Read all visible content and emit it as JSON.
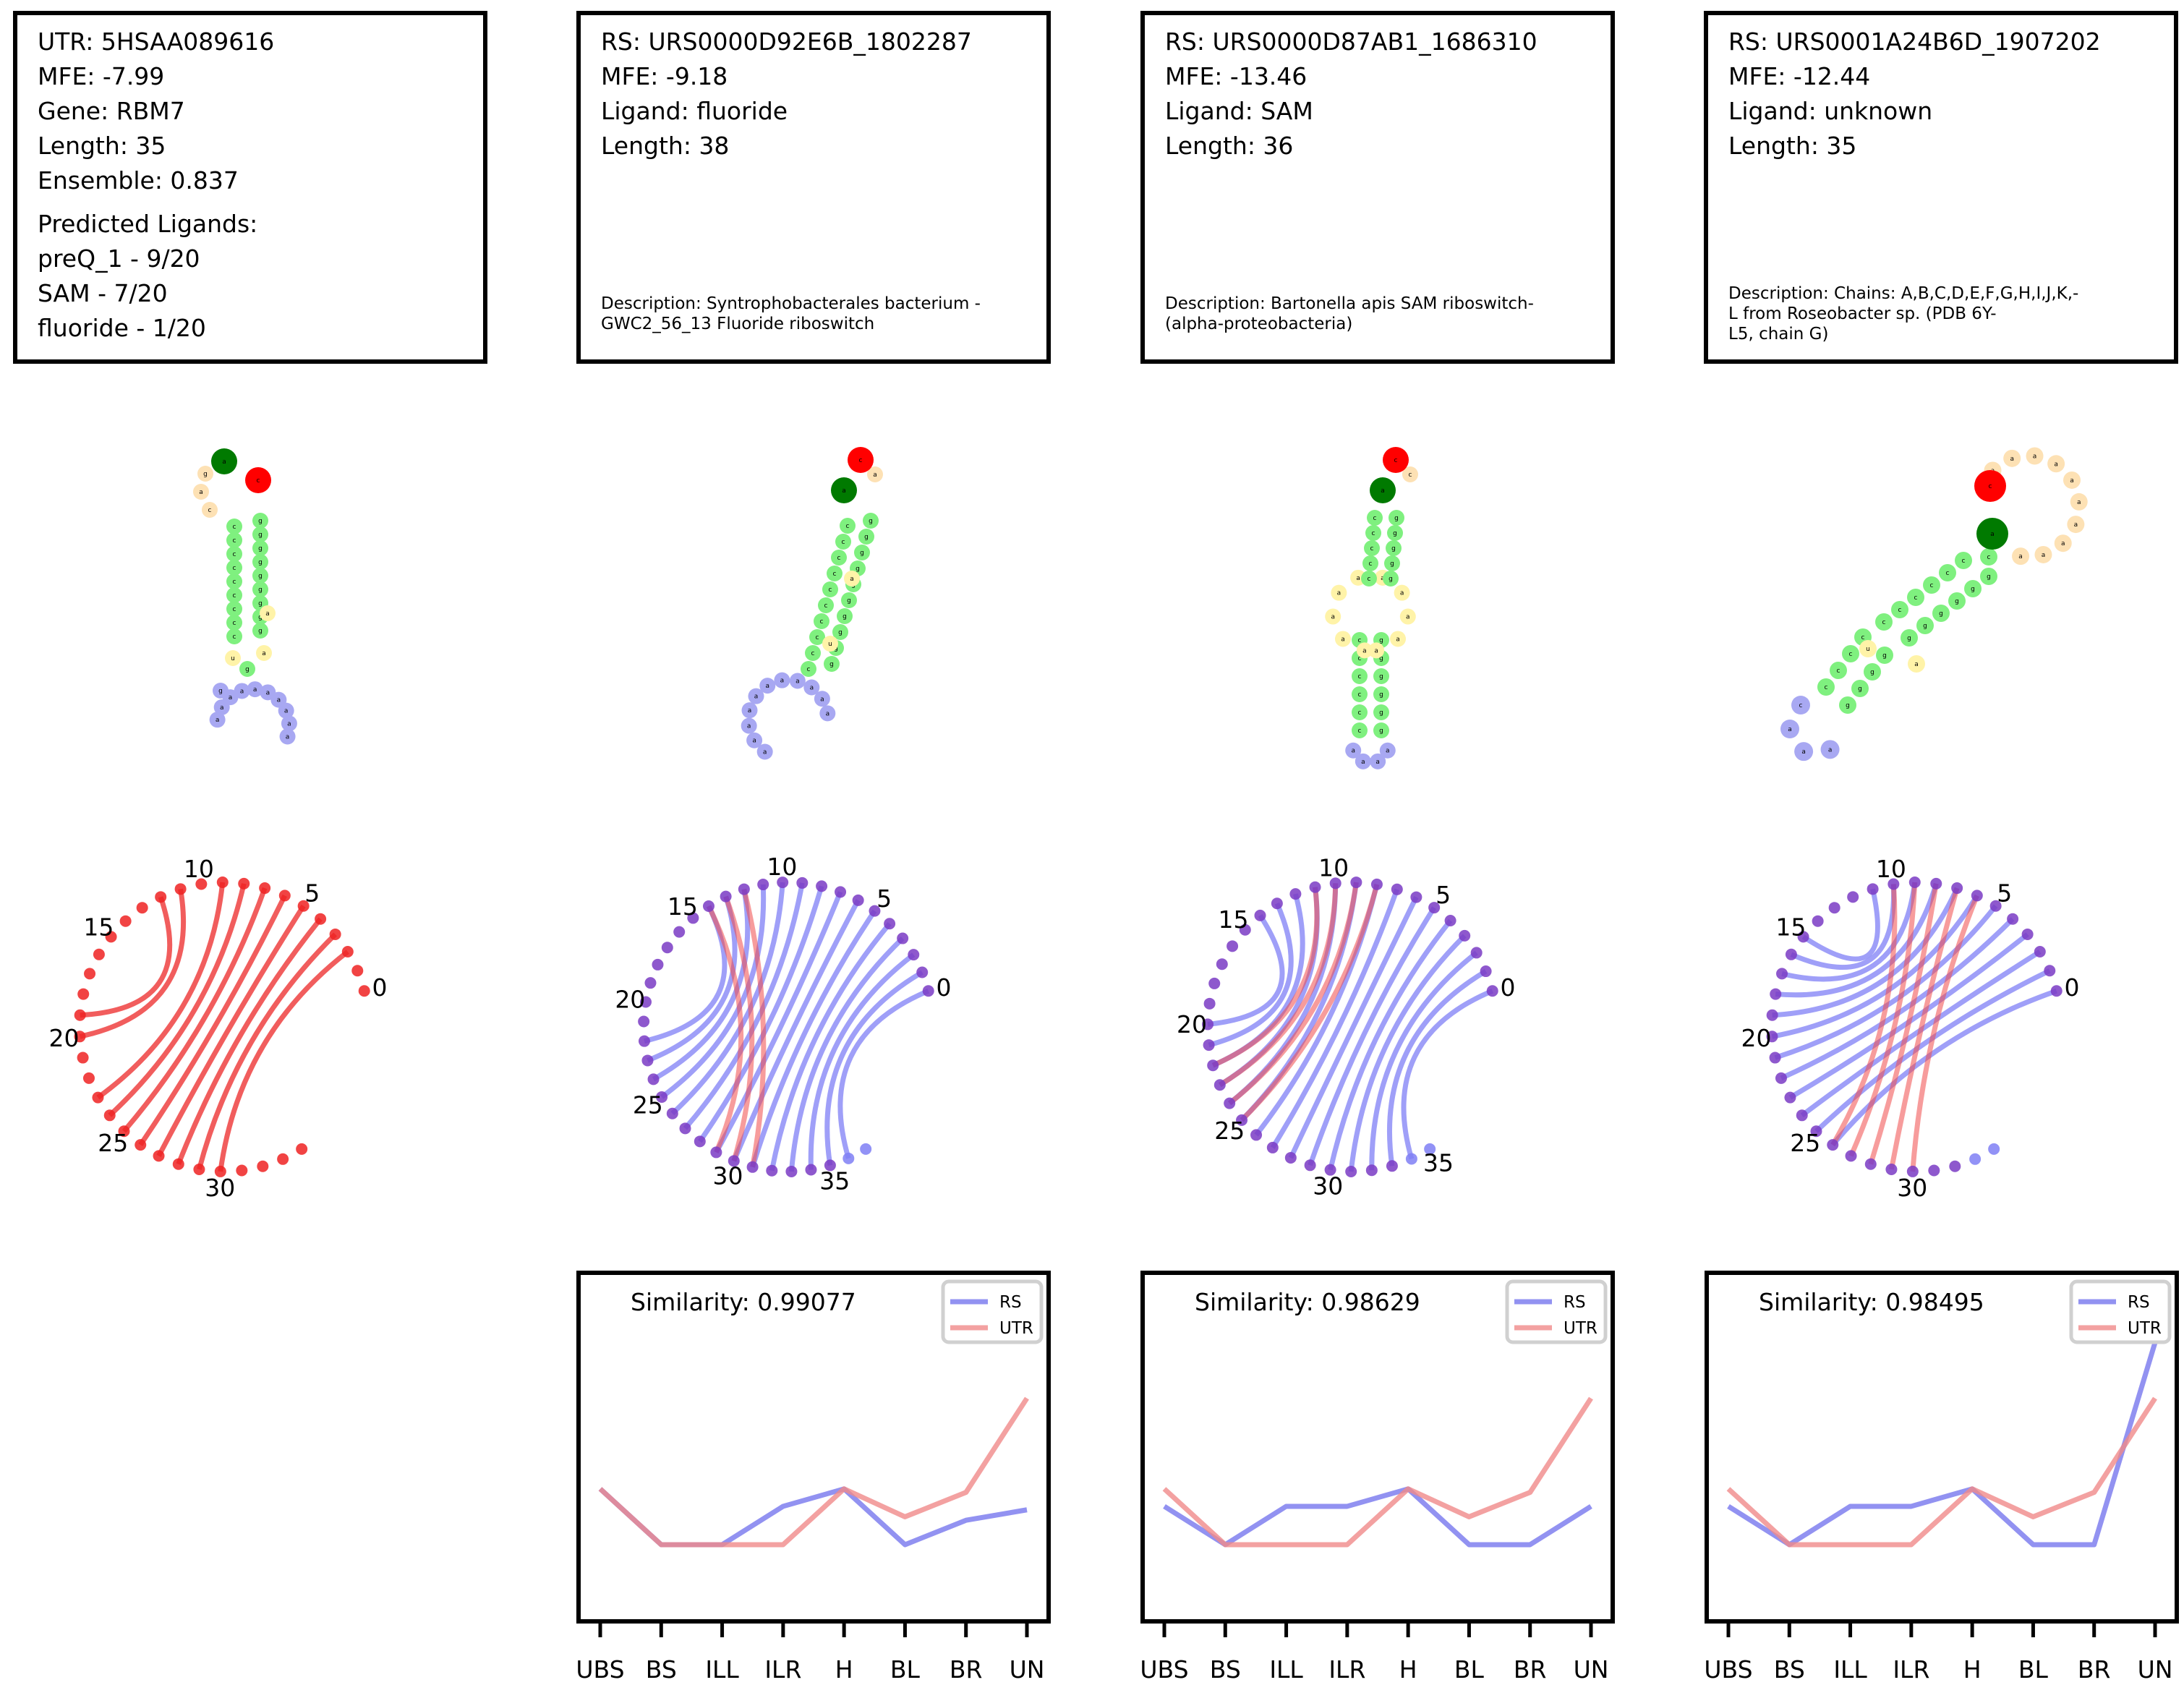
{
  "info_boxes": [
    {
      "lines": [
        "UTR: 5HSAA089616",
        "MFE: -7.99",
        "Gene: RBM7",
        "Length: 35",
        "Ensemble: 0.837"
      ],
      "ligands_heading": "Predicted Ligands:",
      "ligands": [
        "preQ_1 - 9/20",
        "SAM - 7/20",
        "fluoride - 1/20"
      ],
      "description": []
    },
    {
      "lines": [
        "RS: URS0000D92E6B_1802287",
        "MFE: -9.18",
        "Ligand: fluoride",
        "Length: 38"
      ],
      "ligands_heading": "",
      "ligands": [],
      "description": [
        "Description: Syntrophobacterales bacterium -",
        "GWC2_56_13 Fluoride riboswitch"
      ]
    },
    {
      "lines": [
        "RS: URS0000D87AB1_1686310",
        "MFE: -13.46",
        "Ligand: SAM",
        "Length: 36"
      ],
      "ligands_heading": "",
      "ligands": [],
      "description": [
        "Description: Bartonella apis SAM riboswitch-",
        " (alpha-proteobacteria)"
      ]
    },
    {
      "lines": [
        "RS: URS0001A24B6D_1907202",
        "MFE: -12.44",
        "Ligand: unknown",
        "Length: 35"
      ],
      "ligands_heading": "",
      "ligands": [],
      "description": [
        "Description: Chains: A,B,C,D,E,F,G,H,I,J,K,-",
        "L from Roseobacter sp. (PDB 6Y-",
        "L5, chain G)"
      ]
    }
  ],
  "arc_diagrams": [
    {
      "length": 35,
      "tick_labels": [
        "0",
        "5",
        "10",
        "15",
        "20",
        "25",
        "30"
      ],
      "pairs": [
        [
          2,
          30
        ],
        [
          3,
          29
        ],
        [
          4,
          28
        ],
        [
          5,
          27
        ],
        [
          6,
          26
        ],
        [
          7,
          25
        ],
        [
          8,
          24
        ],
        [
          9,
          23
        ],
        [
          11,
          20
        ],
        [
          12,
          19
        ]
      ],
      "pair_colors": [
        "utr"
      ]
    },
    {
      "length": 38,
      "tick_labels": [
        "0",
        "5",
        "10",
        "15",
        "20",
        "25",
        "30",
        "35"
      ]
    },
    {
      "length": 36,
      "tick_labels": [
        "0",
        "5",
        "10",
        "15",
        "20",
        "25",
        "30",
        "35"
      ]
    },
    {
      "length": 35,
      "tick_labels": [
        "0",
        "5",
        "10",
        "15",
        "20",
        "25",
        "30"
      ]
    }
  ],
  "chart_data": [
    {
      "type": "line",
      "title": "Similarity: 0.99077",
      "categories": [
        "UBS",
        "BS",
        "ILL",
        "ILR",
        "H",
        "BL",
        "BR",
        "UN"
      ],
      "series": [
        {
          "name": "RS",
          "color": "#7777ee",
          "values": [
            0.38,
            0.22,
            0.22,
            0.33,
            0.38,
            0.22,
            0.29,
            0.32
          ]
        },
        {
          "name": "UTR",
          "color": "#f08a8a",
          "values": [
            0.38,
            0.22,
            0.22,
            0.22,
            0.38,
            0.3,
            0.37,
            0.64
          ]
        }
      ],
      "ylim": [
        0,
        1
      ],
      "legend": "top-right",
      "grid": false
    },
    {
      "type": "line",
      "title": "Similarity: 0.98629",
      "categories": [
        "UBS",
        "BS",
        "ILL",
        "ILR",
        "H",
        "BL",
        "BR",
        "UN"
      ],
      "series": [
        {
          "name": "RS",
          "color": "#7777ee",
          "values": [
            0.33,
            0.22,
            0.33,
            0.33,
            0.38,
            0.22,
            0.22,
            0.33
          ]
        },
        {
          "name": "UTR",
          "color": "#f08a8a",
          "values": [
            0.38,
            0.22,
            0.22,
            0.22,
            0.38,
            0.3,
            0.37,
            0.64
          ]
        }
      ],
      "ylim": [
        0,
        1
      ],
      "legend": "top-right",
      "grid": false
    },
    {
      "type": "line",
      "title": "Similarity: 0.98495",
      "categories": [
        "UBS",
        "BS",
        "ILL",
        "ILR",
        "H",
        "BL",
        "BR",
        "UN"
      ],
      "series": [
        {
          "name": "RS",
          "color": "#7777ee",
          "values": [
            0.33,
            0.22,
            0.33,
            0.33,
            0.38,
            0.22,
            0.22,
            0.8
          ]
        },
        {
          "name": "UTR",
          "color": "#f08a8a",
          "values": [
            0.38,
            0.22,
            0.22,
            0.22,
            0.38,
            0.3,
            0.37,
            0.64
          ]
        }
      ],
      "ylim": [
        0,
        1
      ],
      "legend": "top-right",
      "grid": false
    }
  ]
}
